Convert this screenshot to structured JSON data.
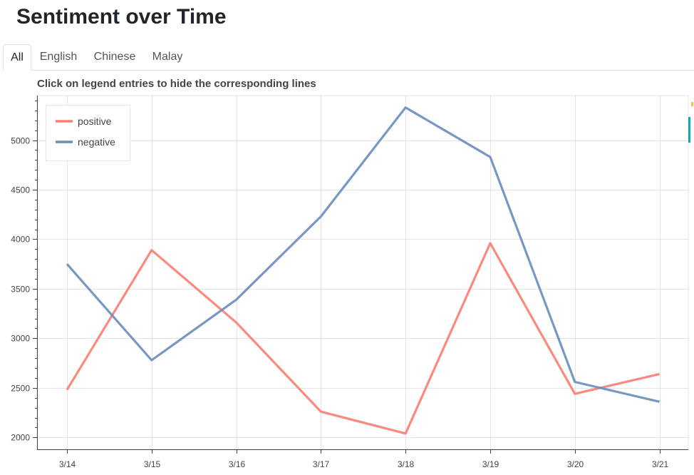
{
  "page": {
    "title": "Sentiment over Time"
  },
  "tabs": [
    {
      "label": "All",
      "active": true
    },
    {
      "label": "English",
      "active": false
    },
    {
      "label": "Chinese",
      "active": false
    },
    {
      "label": "Malay",
      "active": false
    }
  ],
  "chart_data": {
    "type": "line",
    "title": "Click on legend entries to hide the corresponding lines",
    "xlabel": "",
    "ylabel": "",
    "categories": [
      "3/14",
      "3/15",
      "3/16",
      "3/17",
      "3/18",
      "3/19",
      "3/20",
      "3/21"
    ],
    "y_ticks": [
      2000,
      2500,
      3000,
      3500,
      4000,
      4500,
      5000
    ],
    "ylim": [
      1880,
      5450
    ],
    "grid": true,
    "legend_position": "top-left",
    "series": [
      {
        "name": "positive",
        "color": "#fa8072",
        "values": [
          2480,
          3890,
          3160,
          2260,
          2040,
          3960,
          2440,
          2640
        ]
      },
      {
        "name": "negative",
        "color": "#6a8fbd",
        "values": [
          3750,
          2780,
          3390,
          4230,
          5330,
          4830,
          2560,
          2360
        ]
      }
    ]
  }
}
